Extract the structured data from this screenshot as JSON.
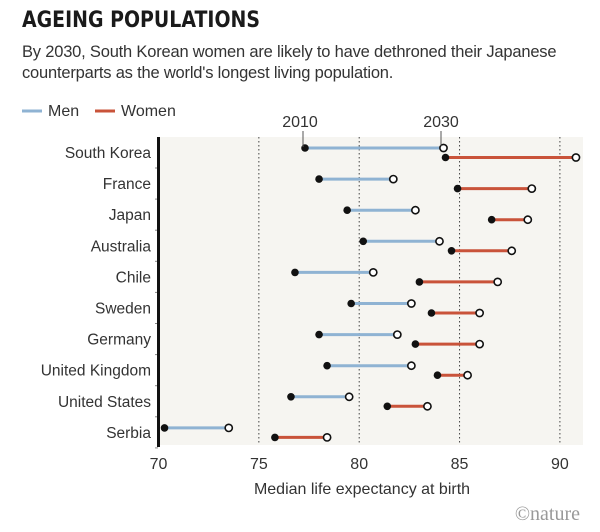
{
  "chart_data": {
    "type": "dumbbell",
    "title": "AGEING POPULATIONS",
    "subtitle": "By 2030, South Korean women are likely to have dethroned their Japanese counterparts as the world's longest living population.",
    "xlabel": "Median life expectancy at birth",
    "xlim": [
      70,
      91
    ],
    "xticks": [
      70,
      75,
      80,
      85,
      90
    ],
    "grid": "vertical dotted",
    "legend": [
      {
        "name": "Men",
        "color": "#8fb3d3"
      },
      {
        "name": "Women",
        "color": "#c9533a"
      }
    ],
    "legend_position": "top-left",
    "markers": {
      "start": "2010",
      "end": "2030"
    },
    "categories": [
      "South Korea",
      "France",
      "Japan",
      "Australia",
      "Chile",
      "Sweden",
      "Germany",
      "United Kingdom",
      "United States",
      "Serbia"
    ],
    "series": [
      {
        "name": "Men",
        "y2010": [
          77.3,
          78.0,
          79.4,
          80.2,
          76.8,
          79.6,
          78.0,
          78.4,
          76.6,
          70.3
        ],
        "y2030": [
          84.2,
          81.7,
          82.8,
          84.0,
          80.7,
          82.6,
          81.9,
          82.6,
          79.5,
          73.5
        ]
      },
      {
        "name": "Women",
        "y2010": [
          84.3,
          84.9,
          86.6,
          84.6,
          83.0,
          83.6,
          82.8,
          83.9,
          81.4,
          75.8
        ],
        "y2030": [
          90.8,
          88.6,
          88.4,
          87.6,
          86.9,
          86.0,
          86.0,
          85.4,
          83.4,
          78.4
        ]
      }
    ],
    "credit": "©nature"
  }
}
